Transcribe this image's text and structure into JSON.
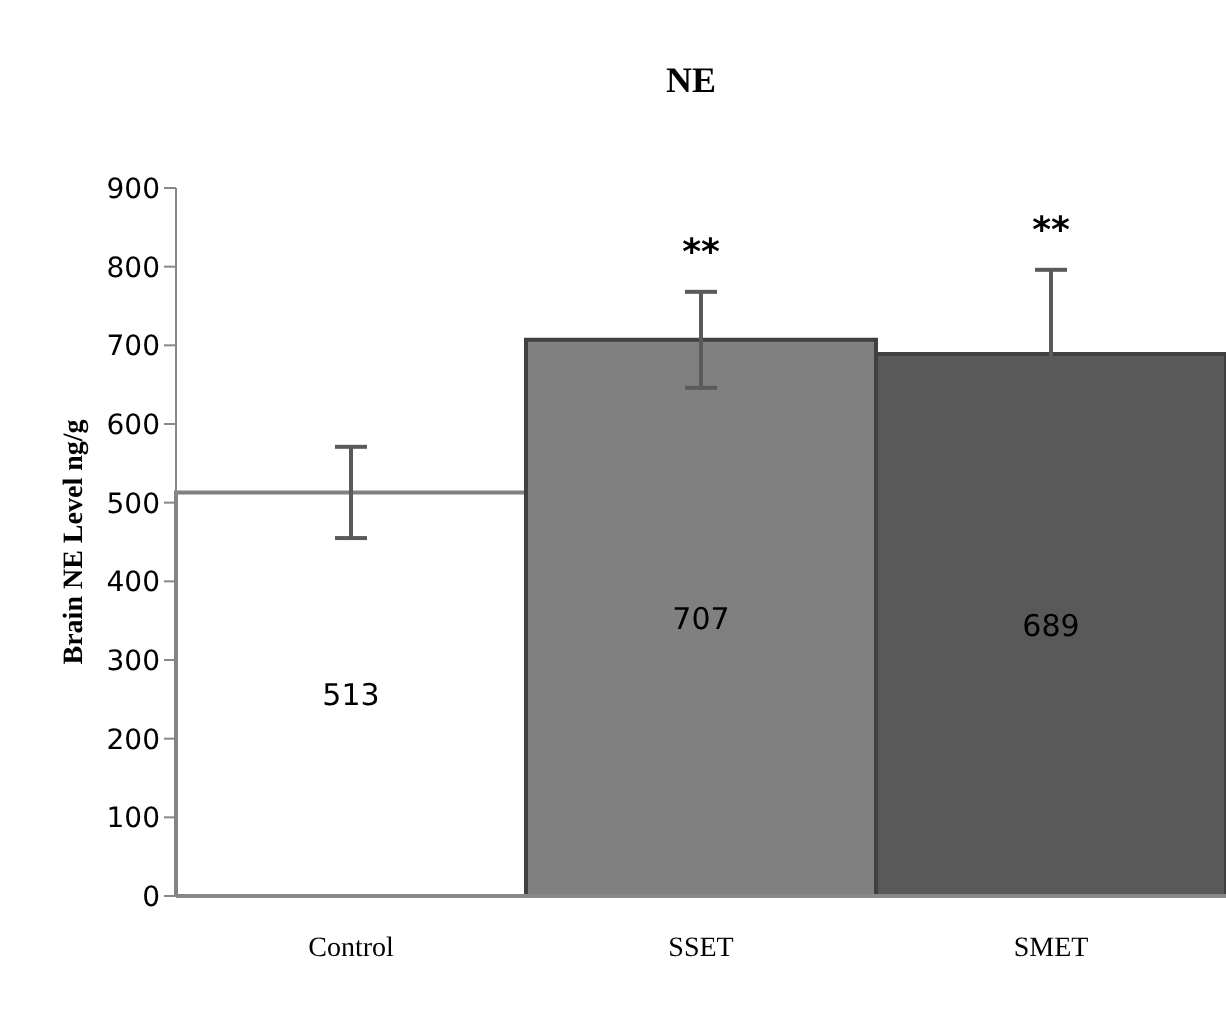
{
  "chart_data": {
    "type": "bar",
    "title": "NE",
    "ylabel": "Brain NE Level ng/g",
    "categories": [
      "Control",
      "SSET",
      "SMET"
    ],
    "values": [
      513,
      707,
      689
    ],
    "colors": [
      "#ffffff",
      "#808080",
      "#595959"
    ],
    "errors": [
      58,
      61,
      107
    ],
    "data_labels": true,
    "annotations": [
      "**",
      "**"
    ],
    "ylim": [
      0,
      900
    ],
    "yticks": [
      0,
      100,
      200,
      300,
      400,
      500,
      600,
      700,
      800,
      900
    ],
    "grid": false,
    "legend": false
  }
}
